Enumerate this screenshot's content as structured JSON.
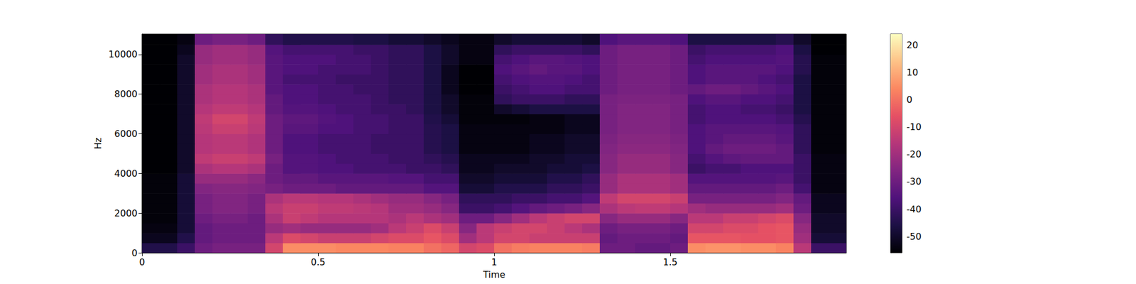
{
  "chart_data": {
    "type": "heatmap",
    "xlabel": "Time",
    "ylabel": "Hz",
    "xlim": [
      0,
      2.0
    ],
    "ylim": [
      0,
      11025
    ],
    "xticks": [
      0,
      0.5,
      1,
      1.5
    ],
    "yticks": [
      0,
      2000,
      4000,
      6000,
      8000,
      10000
    ],
    "grid": false,
    "x_bins": [
      0,
      0.05,
      0.1,
      0.15,
      0.2,
      0.25,
      0.3,
      0.35,
      0.4,
      0.45,
      0.5,
      0.55,
      0.6,
      0.65,
      0.7,
      0.75,
      0.8,
      0.85,
      0.9,
      0.95,
      1,
      1.05,
      1.1,
      1.15,
      1.2,
      1.25,
      1.3,
      1.35,
      1.4,
      1.45,
      1.5,
      1.55,
      1.6,
      1.65,
      1.7,
      1.75,
      1.8,
      1.85,
      1.9,
      1.95,
      2.0
    ],
    "y_bins": [
      0,
      500,
      1000,
      1500,
      2000,
      2500,
      3000,
      3500,
      4000,
      4500,
      5000,
      5500,
      6000,
      6500,
      7000,
      7500,
      8000,
      8500,
      9000,
      9500,
      10000,
      10500,
      11025
    ],
    "cells": [
      [
        -45,
        -45,
        -40,
        -30,
        -28,
        -28,
        -28,
        -10,
        5,
        5,
        5,
        4,
        4,
        4,
        3,
        3,
        0,
        -2,
        -10,
        -8,
        0,
        2,
        3,
        3,
        3,
        2,
        -30,
        -30,
        -32,
        -32,
        -30,
        5,
        6,
        6,
        5,
        5,
        3,
        -15,
        -40,
        -40
      ],
      [
        -52,
        -52,
        -45,
        -32,
        -30,
        -30,
        -30,
        -15,
        -8,
        -10,
        -12,
        -12,
        -12,
        -10,
        -8,
        -8,
        -5,
        -8,
        -20,
        -15,
        -10,
        -10,
        -12,
        -12,
        -12,
        -12,
        -32,
        -30,
        -30,
        -30,
        -32,
        -5,
        -5,
        -5,
        -6,
        -6,
        -5,
        -20,
        -48,
        -48
      ],
      [
        -54,
        -54,
        -48,
        -32,
        -30,
        -30,
        -30,
        -22,
        -20,
        -22,
        -22,
        -22,
        -22,
        -20,
        -15,
        -12,
        -8,
        -12,
        -25,
        -15,
        -12,
        -10,
        -10,
        -12,
        -15,
        -18,
        -30,
        -28,
        -28,
        -28,
        -30,
        -10,
        -10,
        -8,
        -8,
        -6,
        -5,
        -22,
        -50,
        -50
      ],
      [
        -55,
        -55,
        -48,
        -30,
        -28,
        -28,
        -30,
        -18,
        -12,
        -14,
        -16,
        -16,
        -16,
        -16,
        -18,
        -15,
        -18,
        -20,
        -30,
        -30,
        -25,
        -20,
        -15,
        -12,
        -10,
        -10,
        -25,
        -22,
        -22,
        -22,
        -25,
        -15,
        -15,
        -12,
        -12,
        -10,
        -8,
        -25,
        -50,
        -50
      ],
      [
        -55,
        -55,
        -48,
        -28,
        -26,
        -26,
        -28,
        -15,
        -12,
        -12,
        -14,
        -14,
        -15,
        -16,
        -20,
        -20,
        -22,
        -25,
        -40,
        -40,
        -38,
        -35,
        -32,
        -30,
        -28,
        -25,
        -18,
        -15,
        -14,
        -14,
        -16,
        -20,
        -22,
        -22,
        -22,
        -22,
        -20,
        -30,
        -52,
        -52
      ],
      [
        -55,
        -55,
        -48,
        -28,
        -26,
        -26,
        -28,
        -18,
        -15,
        -15,
        -16,
        -16,
        -18,
        -20,
        -22,
        -22,
        -25,
        -28,
        -42,
        -42,
        -42,
        -40,
        -40,
        -38,
        -38,
        -35,
        -14,
        -10,
        -10,
        -10,
        -12,
        -28,
        -28,
        -28,
        -28,
        -28,
        -26,
        -32,
        -52,
        -52
      ],
      [
        -55,
        -55,
        -48,
        -26,
        -25,
        -25,
        -26,
        -28,
        -30,
        -30,
        -30,
        -32,
        -32,
        -32,
        -32,
        -32,
        -35,
        -35,
        -48,
        -48,
        -45,
        -45,
        -45,
        -42,
        -42,
        -40,
        -22,
        -18,
        -18,
        -18,
        -20,
        -32,
        -32,
        -32,
        -32,
        -32,
        -30,
        -38,
        -54,
        -54
      ],
      [
        -55,
        -55,
        -48,
        -22,
        -22,
        -22,
        -24,
        -30,
        -32,
        -32,
        -34,
        -34,
        -34,
        -34,
        -35,
        -35,
        -38,
        -38,
        -50,
        -50,
        -48,
        -48,
        -48,
        -45,
        -45,
        -42,
        -22,
        -18,
        -18,
        -18,
        -20,
        -35,
        -35,
        -35,
        -35,
        -35,
        -34,
        -40,
        -54,
        -54
      ],
      [
        -56,
        -56,
        -50,
        -18,
        -16,
        -16,
        -18,
        -30,
        -35,
        -35,
        -36,
        -36,
        -38,
        -38,
        -38,
        -40,
        -40,
        -42,
        -52,
        -52,
        -50,
        -50,
        -50,
        -48,
        -48,
        -46,
        -25,
        -22,
        -22,
        -22,
        -25,
        -40,
        -38,
        -38,
        -36,
        -36,
        -36,
        -40,
        -54,
        -54
      ],
      [
        -56,
        -56,
        -50,
        -14,
        -12,
        -12,
        -14,
        -28,
        -35,
        -35,
        -36,
        -38,
        -38,
        -38,
        -40,
        -40,
        -42,
        -44,
        -52,
        -52,
        -52,
        -52,
        -50,
        -50,
        -48,
        -48,
        -25,
        -22,
        -22,
        -22,
        -25,
        -38,
        -35,
        -33,
        -32,
        -32,
        -32,
        -40,
        -54,
        -54
      ],
      [
        -56,
        -56,
        -50,
        -16,
        -15,
        -15,
        -17,
        -30,
        -36,
        -36,
        -38,
        -38,
        -38,
        -40,
        -40,
        -40,
        -44,
        -46,
        -54,
        -54,
        -54,
        -54,
        -52,
        -52,
        -50,
        -50,
        -26,
        -24,
        -24,
        -24,
        -26,
        -36,
        -32,
        -30,
        -30,
        -30,
        -32,
        -42,
        -55,
        -55
      ],
      [
        -56,
        -56,
        -50,
        -16,
        -15,
        -15,
        -17,
        -30,
        -36,
        -36,
        -38,
        -38,
        -38,
        -40,
        -40,
        -40,
        -44,
        -46,
        -54,
        -54,
        -54,
        -54,
        -52,
        -52,
        -50,
        -50,
        -27,
        -25,
        -25,
        -25,
        -27,
        -36,
        -34,
        -32,
        -32,
        -32,
        -34,
        -42,
        -55,
        -55
      ],
      [
        -56,
        -56,
        -50,
        -15,
        -12,
        -12,
        -15,
        -30,
        -34,
        -34,
        -36,
        -36,
        -38,
        -38,
        -40,
        -40,
        -44,
        -46,
        -54,
        -54,
        -54,
        -54,
        -54,
        -54,
        -52,
        -52,
        -28,
        -26,
        -26,
        -26,
        -28,
        -36,
        -34,
        -34,
        -34,
        -34,
        -35,
        -42,
        -55,
        -55
      ],
      [
        -56,
        -56,
        -50,
        -14,
        -10,
        -10,
        -14,
        -30,
        -33,
        -33,
        -35,
        -36,
        -38,
        -38,
        -40,
        -40,
        -45,
        -48,
        -55,
        -55,
        -55,
        -55,
        -54,
        -54,
        -52,
        -52,
        -28,
        -26,
        -26,
        -26,
        -28,
        -38,
        -36,
        -36,
        -36,
        -36,
        -38,
        -44,
        -55,
        -55
      ],
      [
        -56,
        -56,
        -50,
        -16,
        -14,
        -14,
        -16,
        -32,
        -35,
        -35,
        -36,
        -38,
        -38,
        -40,
        -40,
        -42,
        -46,
        -50,
        -55,
        -55,
        -50,
        -48,
        -46,
        -46,
        -46,
        -46,
        -28,
        -26,
        -26,
        -26,
        -28,
        -38,
        -36,
        -36,
        -38,
        -38,
        -40,
        -46,
        -55,
        -55
      ],
      [
        -56,
        -56,
        -50,
        -18,
        -16,
        -16,
        -18,
        -32,
        -36,
        -36,
        -38,
        -38,
        -38,
        -40,
        -42,
        -42,
        -46,
        -50,
        -55,
        -55,
        -42,
        -40,
        -40,
        -40,
        -42,
        -42,
        -28,
        -27,
        -27,
        -27,
        -28,
        -36,
        -34,
        -34,
        -36,
        -36,
        -38,
        -46,
        -55,
        -55
      ],
      [
        -56,
        -56,
        -50,
        -18,
        -16,
        -16,
        -18,
        -34,
        -36,
        -36,
        -38,
        -38,
        -40,
        -40,
        -42,
        -42,
        -46,
        -52,
        -56,
        -56,
        -40,
        -38,
        -36,
        -36,
        -38,
        -38,
        -30,
        -28,
        -28,
        -28,
        -30,
        -32,
        -30,
        -30,
        -32,
        -34,
        -36,
        -46,
        -55,
        -55
      ],
      [
        -56,
        -56,
        -50,
        -20,
        -18,
        -18,
        -20,
        -34,
        -38,
        -38,
        -38,
        -40,
        -40,
        -40,
        -42,
        -42,
        -46,
        -52,
        -56,
        -56,
        -38,
        -36,
        -35,
        -35,
        -36,
        -38,
        -30,
        -28,
        -28,
        -28,
        -30,
        -36,
        -34,
        -34,
        -34,
        -36,
        -38,
        -46,
        -55,
        -55
      ],
      [
        -56,
        -56,
        -50,
        -20,
        -18,
        -18,
        -20,
        -34,
        -36,
        -36,
        -38,
        -38,
        -38,
        -40,
        -42,
        -42,
        -46,
        -52,
        -56,
        -56,
        -36,
        -34,
        -32,
        -34,
        -34,
        -36,
        -30,
        -28,
        -28,
        -28,
        -30,
        -36,
        -34,
        -34,
        -34,
        -34,
        -36,
        -44,
        -55,
        -55
      ],
      [
        -56,
        -56,
        -50,
        -22,
        -20,
        -20,
        -22,
        -34,
        -36,
        -36,
        -36,
        -38,
        -38,
        -40,
        -42,
        -42,
        -46,
        -50,
        -54,
        -54,
        -38,
        -36,
        -34,
        -34,
        -35,
        -36,
        -30,
        -28,
        -28,
        -28,
        -30,
        -38,
        -36,
        -36,
        -36,
        -36,
        -35,
        -44,
        -55,
        -55
      ],
      [
        -56,
        -56,
        -52,
        -22,
        -20,
        -20,
        -22,
        -35,
        -38,
        -38,
        -38,
        -38,
        -40,
        -40,
        -42,
        -42,
        -46,
        -50,
        -54,
        -54,
        -42,
        -40,
        -40,
        -40,
        -40,
        -42,
        -30,
        -28,
        -28,
        -28,
        -30,
        -40,
        -38,
        -38,
        -38,
        -38,
        -36,
        -46,
        -56,
        -56
      ],
      [
        -56,
        -56,
        -54,
        -30,
        -28,
        -28,
        -30,
        -42,
        -45,
        -45,
        -45,
        -45,
        -46,
        -46,
        -48,
        -48,
        -50,
        -52,
        -54,
        -54,
        -50,
        -48,
        -48,
        -48,
        -48,
        -50,
        -36,
        -34,
        -34,
        -34,
        -36,
        -46,
        -46,
        -46,
        -46,
        -46,
        -44,
        -50,
        -56,
        -56
      ]
    ],
    "colorbar_range": [
      -56,
      24
    ],
    "colorbar_ticks": [
      -50,
      -40,
      -30,
      -20,
      -10,
      0,
      10,
      20
    ]
  }
}
